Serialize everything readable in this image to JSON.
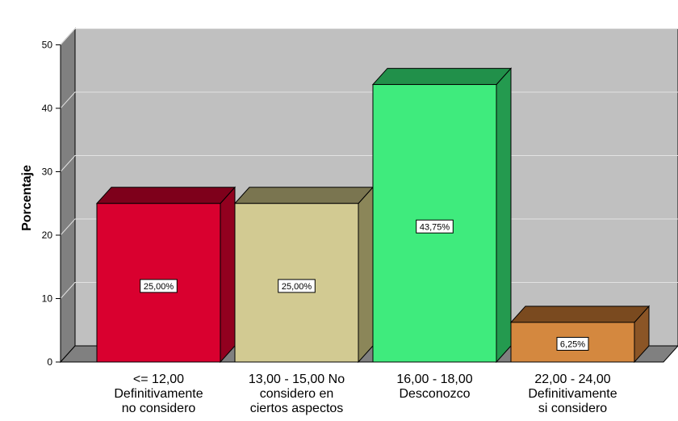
{
  "chart_data": {
    "type": "bar",
    "three_d": true,
    "ylabel": "Porcentaje",
    "ylim": [
      0,
      50
    ],
    "yticks": [
      0,
      10,
      20,
      30,
      40,
      50
    ],
    "grid": true,
    "categories": [
      [
        "<= 12,00",
        "Definitivamente",
        "no considero"
      ],
      [
        "13,00 - 15,00 No",
        "considero  en",
        "ciertos aspectos"
      ],
      [
        "16,00 - 18,00",
        "Desconozco"
      ],
      [
        "22,00 - 24,00",
        "Definitivamente",
        "si considero"
      ]
    ],
    "values": [
      25.0,
      25.0,
      43.75,
      6.25
    ],
    "data_labels": [
      "25,00%",
      "25,00%",
      "43,75%",
      "6,25%"
    ],
    "colors": [
      {
        "front": "#d9002f",
        "top": "#7e001b",
        "side": "#92001f"
      },
      {
        "front": "#d2ca92",
        "top": "#7a7550",
        "side": "#8b8659"
      },
      {
        "front": "#3feb7d",
        "top": "#21904a",
        "side": "#249a4f"
      },
      {
        "front": "#d4883f",
        "top": "#7a4a1f",
        "side": "#8b5526"
      }
    ]
  }
}
